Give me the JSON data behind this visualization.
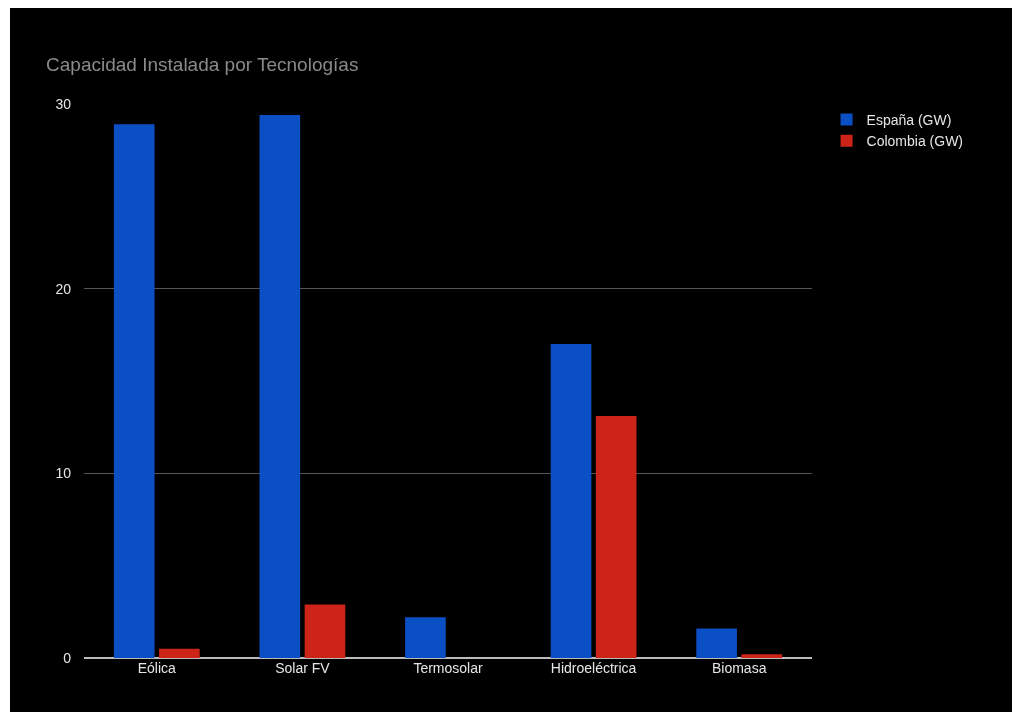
{
  "chart_data": {
    "type": "bar",
    "title": "Capacidad Instalada por Tecnologías",
    "categories": [
      "Eólica",
      "Solar FV",
      "Termosolar",
      "Hidroeléctrica",
      "Biomasa"
    ],
    "series": [
      {
        "name": "España (GW)",
        "color": "#0b4fc4",
        "values": [
          28.9,
          29.4,
          2.2,
          17.0,
          1.6
        ]
      },
      {
        "name": "Colombia (GW)",
        "color": "#cc2418",
        "values": [
          0.5,
          2.9,
          null,
          13.1,
          0.2
        ]
      }
    ],
    "ylim": [
      0,
      30
    ],
    "yticks": [
      0,
      10,
      20,
      30
    ],
    "grid": "y",
    "legend": "top right"
  }
}
